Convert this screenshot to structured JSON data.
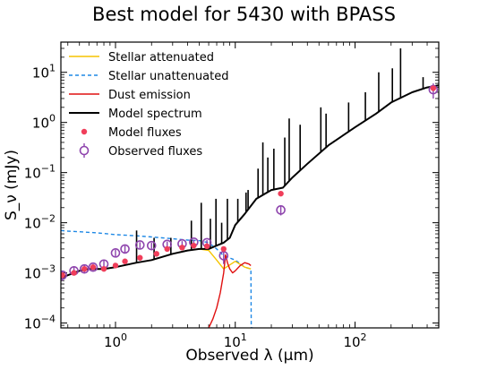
{
  "chart_data": {
    "type": "line",
    "title": "Best model for 5430 with BPASS",
    "xlabel": "Observed λ (μm)",
    "ylabel": "S_ν (mJy)",
    "xscale": "log",
    "yscale": "log",
    "xlim": [
      0.35,
      500
    ],
    "ylim": [
      8e-05,
      40
    ],
    "xticks": [
      {
        "value": 1,
        "base": "10",
        "exp": "0"
      },
      {
        "value": 10,
        "base": "10",
        "exp": "1"
      },
      {
        "value": 100,
        "base": "10",
        "exp": "2"
      }
    ],
    "yticks": [
      {
        "value": 0.0001,
        "base": "10",
        "exp": "−4"
      },
      {
        "value": 0.001,
        "base": "10",
        "exp": "−3"
      },
      {
        "value": 0.01,
        "base": "10",
        "exp": "−2"
      },
      {
        "value": 0.1,
        "base": "10",
        "exp": "−1"
      },
      {
        "value": 1,
        "base": "10",
        "exp": "0"
      },
      {
        "value": 10,
        "base": "10",
        "exp": "1"
      }
    ],
    "legend_position": "upper-left",
    "series": [
      {
        "name": "Stellar attenuated",
        "style": "solid",
        "color": "#f5c400",
        "x": [
          0.35,
          0.4,
          0.5,
          0.6,
          0.8,
          1.0,
          1.5,
          2.0,
          3.0,
          4.0,
          5.0,
          6.0,
          7.0,
          8.0,
          10.0,
          12.0,
          13.5
        ],
        "y": [
          0.0008,
          0.0009,
          0.0011,
          0.0012,
          0.0012,
          0.0013,
          0.0016,
          0.0018,
          0.0024,
          0.0028,
          0.003,
          0.0028,
          0.0018,
          0.0012,
          0.0017,
          0.0013,
          0.0012
        ]
      },
      {
        "name": "Stellar unattenuated",
        "style": "dashed",
        "color": "#1e88e5",
        "x": [
          0.35,
          0.4,
          0.5,
          0.7,
          1.0,
          1.5,
          2.0,
          3.0,
          4.0,
          5.0,
          6.0,
          7.0,
          8.0,
          10.0,
          12.0,
          13.5,
          13.6,
          14.0
        ],
        "y": [
          0.007,
          0.0068,
          0.0066,
          0.0063,
          0.0058,
          0.0055,
          0.0052,
          0.0048,
          0.0045,
          0.0044,
          0.004,
          0.003,
          0.0022,
          0.0018,
          0.0013,
          0.0012,
          8e-05,
          8e-05
        ]
      },
      {
        "name": "Dust emission",
        "style": "solid",
        "color": "#e01010",
        "x": [
          6.0,
          6.5,
          7.0,
          7.5,
          8.0,
          8.3,
          8.6,
          9.0,
          9.5,
          10.0,
          11.0,
          12.0,
          13.0,
          13.5
        ],
        "y": [
          8e-05,
          0.00012,
          0.0002,
          0.0004,
          0.001,
          0.0023,
          0.0016,
          0.0012,
          0.001,
          0.0011,
          0.0014,
          0.0016,
          0.0015,
          0.0014
        ]
      },
      {
        "name": "Model spectrum",
        "style": "solid",
        "color": "#000000",
        "x": [
          0.35,
          0.4,
          0.5,
          0.6,
          0.8,
          1.0,
          1.5,
          2.0,
          3.0,
          4.0,
          5.0,
          6.0,
          7.0,
          8.0,
          9.0,
          10.0,
          12.0,
          15.0,
          20.0,
          25.0,
          30.0,
          40.0,
          60.0,
          100.0,
          150.0,
          200.0,
          300.0,
          400.0,
          500.0
        ],
        "y": [
          0.0008,
          0.0009,
          0.0011,
          0.0012,
          0.0012,
          0.0013,
          0.0016,
          0.0018,
          0.0024,
          0.0028,
          0.003,
          0.003,
          0.0035,
          0.004,
          0.005,
          0.009,
          0.015,
          0.03,
          0.045,
          0.05,
          0.08,
          0.15,
          0.35,
          0.8,
          1.5,
          2.5,
          4.0,
          5.0,
          5.5
        ],
        "lines": [
          {
            "x": 1.5,
            "y": 0.007
          },
          {
            "x": 2.1,
            "y": 0.005
          },
          {
            "x": 2.9,
            "y": 0.005
          },
          {
            "x": 4.3,
            "y": 0.011
          },
          {
            "x": 5.2,
            "y": 0.025
          },
          {
            "x": 6.2,
            "y": 0.012
          },
          {
            "x": 6.9,
            "y": 0.03
          },
          {
            "x": 7.7,
            "y": 0.01
          },
          {
            "x": 8.6,
            "y": 0.03
          },
          {
            "x": 10.5,
            "y": 0.03
          },
          {
            "x": 12.3,
            "y": 0.04
          },
          {
            "x": 12.8,
            "y": 0.045
          },
          {
            "x": 15.5,
            "y": 0.12
          },
          {
            "x": 17.0,
            "y": 0.4
          },
          {
            "x": 18.7,
            "y": 0.2
          },
          {
            "x": 21.0,
            "y": 0.3
          },
          {
            "x": 25.9,
            "y": 0.5
          },
          {
            "x": 28.2,
            "y": 1.2
          },
          {
            "x": 34.8,
            "y": 0.9
          },
          {
            "x": 51.8,
            "y": 2.0
          },
          {
            "x": 57.3,
            "y": 1.5
          },
          {
            "x": 88.4,
            "y": 2.5
          },
          {
            "x": 122.0,
            "y": 4.0
          },
          {
            "x": 157.7,
            "y": 10.0
          },
          {
            "x": 205.0,
            "y": 12.0
          },
          {
            "x": 240.0,
            "y": 30.0
          },
          {
            "x": 370.0,
            "y": 8.0
          }
        ]
      }
    ],
    "model_fluxes": {
      "name": "Model fluxes",
      "color": "#f03e5a",
      "x": [
        0.36,
        0.45,
        0.55,
        0.65,
        0.8,
        1.0,
        1.2,
        1.6,
        2.2,
        2.7,
        3.6,
        4.5,
        5.8,
        8.0,
        24.0,
        450.0
      ],
      "y": [
        0.0009,
        0.001,
        0.0012,
        0.0013,
        0.0012,
        0.0014,
        0.0017,
        0.002,
        0.0024,
        0.003,
        0.0032,
        0.0035,
        0.0034,
        0.003,
        0.038,
        4.8
      ]
    },
    "observed_fluxes": {
      "name": "Observed fluxes",
      "color": "#8e44ad",
      "x": [
        0.36,
        0.45,
        0.55,
        0.65,
        0.8,
        1.0,
        1.2,
        1.6,
        2.0,
        2.7,
        3.6,
        4.5,
        5.8,
        8.0,
        24.0,
        450.0
      ],
      "y": [
        0.0009,
        0.0011,
        0.0012,
        0.0013,
        0.0015,
        0.0025,
        0.003,
        0.0036,
        0.0035,
        0.0037,
        0.0038,
        0.0041,
        0.004,
        0.0022,
        0.018,
        4.5
      ],
      "err_lo": [
        0.0007,
        0.0009,
        0.001,
        0.0011,
        0.0012,
        0.0021,
        0.0025,
        0.0031,
        0.003,
        0.0032,
        0.0033,
        0.0036,
        0.0035,
        0.0015,
        0.014,
        3.0
      ],
      "err_hi": [
        0.0011,
        0.0013,
        0.0014,
        0.0015,
        0.0018,
        0.0029,
        0.0035,
        0.0041,
        0.004,
        0.0042,
        0.0043,
        0.0046,
        0.0045,
        0.0029,
        0.022,
        6.0
      ]
    }
  }
}
